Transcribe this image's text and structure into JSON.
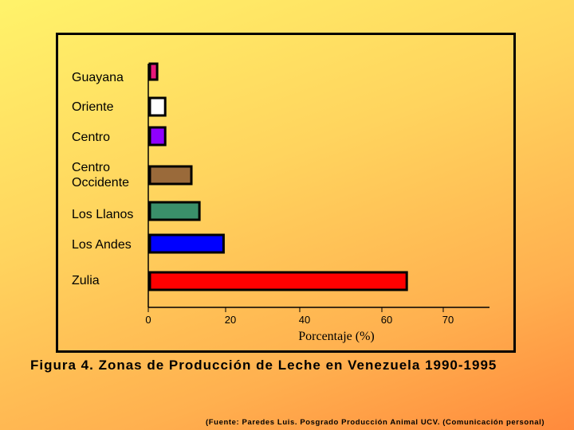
{
  "chart_data": {
    "type": "bar",
    "orientation": "horizontal",
    "categories": [
      "Guayana",
      "Oriente",
      "Centro",
      "Centro Occidente",
      "Los Llanos",
      "Los Andes",
      "Zulia"
    ],
    "values": [
      2,
      4,
      4,
      10.5,
      12.5,
      18.5,
      64
    ],
    "bar_colors": [
      "#e8187a",
      "#ffffff",
      "#8f00ff",
      "#9a6a3a",
      "#3a8f6a",
      "#0000ff",
      "#ff0000"
    ],
    "bar_outline": "#000000",
    "xlabel": "Porcentaje (%)",
    "ylabel": "",
    "xticks": [
      "0",
      "20",
      "40",
      "60",
      "70"
    ],
    "grid": false
  },
  "caption": "Figura 4. Zonas de Producción de Leche en Venezuela 1990-1995",
  "source": "(Fuente: Paredes Luis. Posgrado Producción Animal UCV. (Comunicación personal)"
}
